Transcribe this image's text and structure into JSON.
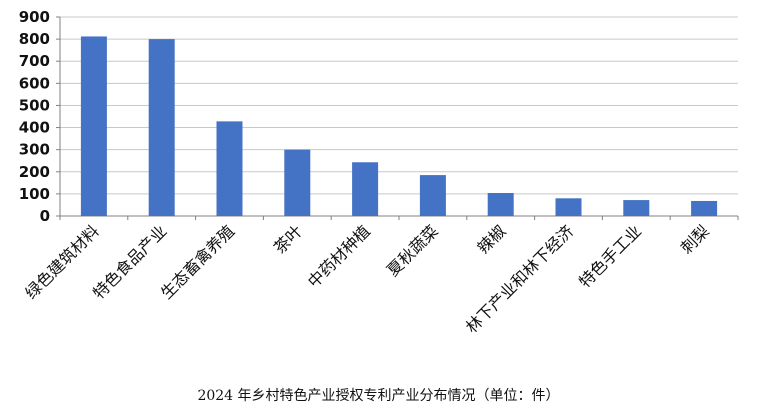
{
  "chart_data": {
    "type": "bar",
    "title": "2024 年乡村特色产业授权专利产业分布情况（单位：件）",
    "xlabel": "",
    "ylabel": "",
    "ylim": [
      0,
      900
    ],
    "yticks": [
      0,
      100,
      200,
      300,
      400,
      500,
      600,
      700,
      800,
      900
    ],
    "grid": true,
    "legend": "none",
    "bar_color": "#4472C4",
    "categories": [
      "绿色建筑材料",
      "特色食品产业",
      "生态畜禽养殖",
      "茶叶",
      "中药材种植",
      "夏秋蔬菜",
      "辣椒",
      "林下产业和林下经济",
      "特色手工业",
      "刺梨"
    ],
    "values": [
      812,
      800,
      428,
      300,
      243,
      185,
      104,
      80,
      72,
      68
    ]
  }
}
